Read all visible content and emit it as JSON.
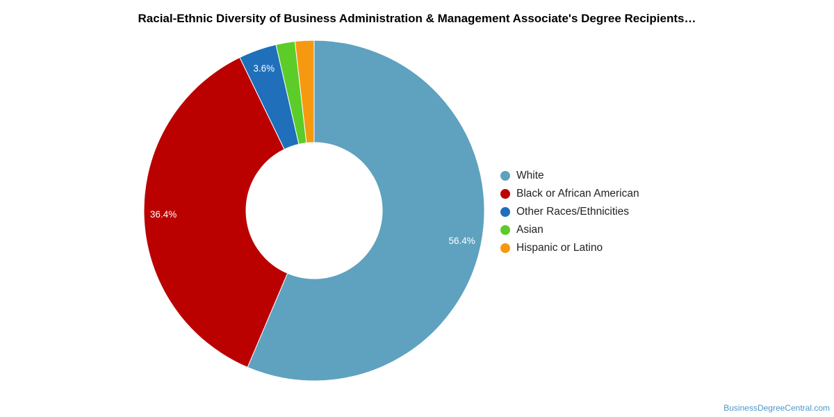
{
  "chart_data": {
    "type": "pie",
    "title": "Racial-Ethnic Diversity of Business Administration & Management Associate's Degree Recipients…",
    "donut": true,
    "legend_placement": "right",
    "slices": [
      {
        "label": "White",
        "value": 56.4,
        "display_label": "56.4%",
        "color": "#5ea2bf"
      },
      {
        "label": "Black or African American",
        "value": 36.4,
        "display_label": "36.4%",
        "color": "#bb0000"
      },
      {
        "label": "Other Races/Ethnicities",
        "value": 3.6,
        "display_label": "3.6%",
        "color": "#1f6fba"
      },
      {
        "label": "Asian",
        "value": 1.8,
        "display_label": "",
        "color": "#5ccc28"
      },
      {
        "label": "Hispanic or Latino",
        "value": 1.8,
        "display_label": "",
        "color": "#f59a10"
      }
    ]
  },
  "footer": {
    "source_text": "BusinessDegreeCentral.com"
  }
}
